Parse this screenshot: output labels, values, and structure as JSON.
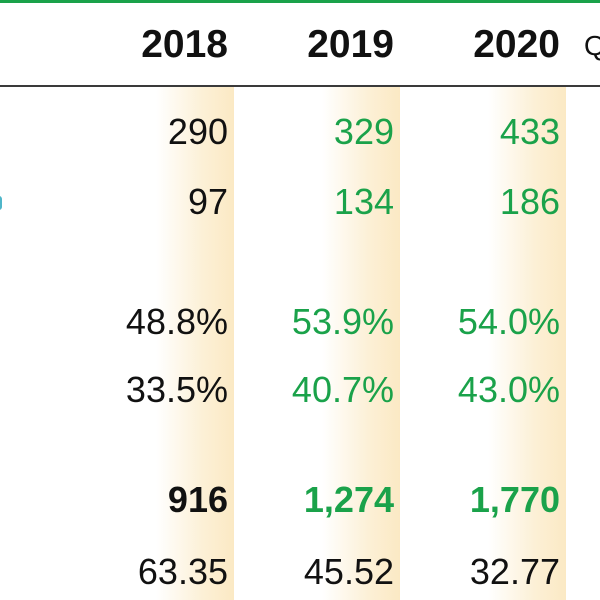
{
  "header": {
    "years": [
      "2018",
      "2019",
      "2020"
    ],
    "partial_next": "Q"
  },
  "colors": {
    "accent_green": "#1aa24a",
    "text_dark": "#111111",
    "column_shade": "#fbe9c4",
    "header_rule": "#3a3a3a"
  },
  "rows": [
    {
      "values": [
        "290",
        "329",
        "433"
      ]
    },
    {
      "values": [
        "97",
        "134",
        "186"
      ]
    },
    {
      "values": [
        "48.8%",
        "53.9%",
        "54.0%"
      ]
    },
    {
      "values": [
        "33.5%",
        "40.7%",
        "43.0%"
      ]
    },
    {
      "values": [
        "916",
        "1,274",
        "1,770"
      ]
    },
    {
      "values": [
        "63.35",
        "45.52",
        "32.77"
      ]
    }
  ]
}
